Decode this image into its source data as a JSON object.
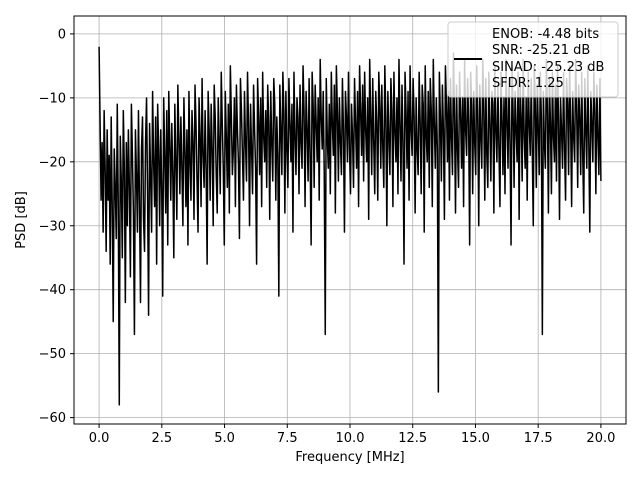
{
  "chart_data": {
    "type": "line",
    "title": "",
    "xlabel": "Frequency [MHz]",
    "ylabel": "PSD [dB]",
    "xlim": [
      -1.0,
      21.0
    ],
    "ylim": [
      -61.0,
      2.8
    ],
    "x_ticks": [
      0.0,
      2.5,
      5.0,
      7.5,
      10.0,
      12.5,
      15.0,
      17.5,
      20.0
    ],
    "x_tick_labels": [
      "0.0",
      "2.5",
      "5.0",
      "7.5",
      "10.0",
      "12.5",
      "15.0",
      "17.5",
      "20.0"
    ],
    "y_ticks": [
      0,
      -10,
      -20,
      -30,
      -40,
      -50,
      -60
    ],
    "y_tick_labels": [
      "0",
      "−10",
      "−20",
      "−30",
      "−40",
      "−50",
      "−60"
    ],
    "grid": true,
    "legend_placement": "top-right",
    "legend_entries": [
      "ENOB: -4.48 bits",
      "SNR: -25.21 dB",
      "SINAD: -25.23 dB",
      "SFDR: 1.25"
    ],
    "line_color": "#000000",
    "series": [
      {
        "x_range": [
          0.0,
          20.0
        ],
        "values": [
          -2,
          -14,
          -26,
          -17,
          -31,
          -12,
          -21,
          -34,
          -15,
          -26,
          -19,
          -36,
          -13,
          -27,
          -45,
          -18,
          -24,
          -32,
          -11,
          -27,
          -58,
          -16,
          -23,
          -35,
          -12,
          -21,
          -42,
          -17,
          -30,
          -15,
          -24,
          -38,
          -11,
          -19,
          -28,
          -47,
          -15,
          -22,
          -31,
          -12,
          -26,
          -42,
          -18,
          -13,
          -29,
          -34,
          -17,
          -10,
          -25,
          -44,
          -14,
          -22,
          -31,
          -9,
          -20,
          -27,
          -13,
          -36,
          -11,
          -18,
          -30,
          -15,
          -24,
          -41,
          -10,
          -19,
          -28,
          -12,
          -33,
          -9,
          -17,
          -26,
          -14,
          -22,
          -35,
          -11,
          -20,
          -29,
          -8,
          -16,
          -25,
          -13,
          -21,
          -30,
          -10,
          -18,
          -27,
          -15,
          -33,
          -9,
          -20,
          -26,
          -12,
          -17,
          -29,
          -8,
          -14,
          -23,
          -31,
          -10,
          -16,
          -27,
          -7,
          -19,
          -24,
          -12,
          -21,
          -36,
          -9,
          -15,
          -26,
          -11,
          -18,
          -30,
          -8,
          -13,
          -22,
          -28,
          -10,
          -17,
          -25,
          -6,
          -14,
          -21,
          -33,
          -9,
          -16,
          -24,
          -11,
          -28,
          -5,
          -13,
          -22,
          -18,
          -10,
          -27,
          -8,
          -15,
          -20,
          -32,
          -7,
          -12,
          -19,
          -26,
          -9,
          -17,
          -23,
          -6,
          -14,
          -30,
          -11,
          -18,
          -25,
          -8,
          -15,
          -21,
          -36,
          -7,
          -13,
          -22,
          -10,
          -27,
          -6,
          -16,
          -20,
          -12,
          -24,
          -8,
          -14,
          -29,
          -9,
          -17,
          -23,
          -7,
          -11,
          -26,
          -13,
          -19,
          -41,
          -8,
          -15,
          -22,
          -6,
          -12,
          -28,
          -9,
          -18,
          -24,
          -7,
          -14,
          -20,
          -11,
          -31,
          -6,
          -16,
          -22,
          -10,
          -13,
          -25,
          -8,
          -17,
          -21,
          -5,
          -12,
          -27,
          -9,
          -15,
          -23,
          -7,
          -19,
          -33,
          -6,
          -11,
          -24,
          -8,
          -14,
          -20,
          -10,
          -26,
          -4,
          -13,
          -18,
          -9,
          -22,
          -47,
          -7,
          -16,
          -21,
          -11,
          -25,
          -6,
          -14,
          -19,
          -8,
          -28,
          -5,
          -12,
          -23,
          -10,
          -17,
          -22,
          -7,
          -15,
          -31,
          -9,
          -13,
          -20,
          -6,
          -18,
          -25,
          -11,
          -16,
          -24,
          -7,
          -14,
          -21,
          -9,
          -27,
          -5,
          -12,
          -19,
          -8,
          -23,
          -6,
          -15,
          -20,
          -10,
          -29,
          -4,
          -13,
          -22,
          -7,
          -17,
          -25,
          -9,
          -14,
          -26,
          -6,
          -11,
          -21,
          -8,
          -18,
          -24,
          -5,
          -13,
          -30,
          -9,
          -16,
          -22,
          -7,
          -12,
          -27,
          -6,
          -15,
          -20,
          -10,
          -25,
          -4,
          -14,
          -23,
          -8,
          -17,
          -36,
          -6,
          -12,
          -21,
          -9,
          -26,
          -5,
          -15,
          -19,
          -7,
          -13,
          -28,
          -10,
          -18,
          -22,
          -6,
          -14,
          -25,
          -8,
          -11,
          -31,
          -5,
          -16,
          -20,
          -9,
          -24,
          -7,
          -12,
          -27,
          -4,
          -14,
          -21,
          -10,
          -18,
          -56,
          -6,
          -13,
          -23,
          -8,
          -15,
          -29,
          -5,
          -11,
          -20,
          -9,
          -26,
          -7,
          -16,
          -22,
          -3,
          -13,
          -28,
          -8,
          -18,
          -24,
          -6,
          -12,
          -21,
          -10,
          -27,
          -4,
          -15,
          -19,
          -7,
          -14,
          -33,
          -6,
          -11,
          -25,
          -9,
          -17,
          -22,
          -5,
          -13,
          -30,
          -8,
          -16,
          -21,
          -4,
          -12,
          -26,
          -7,
          -19,
          -24,
          -6,
          -14,
          -23,
          -9,
          -11,
          -28,
          -5,
          -15,
          -20,
          -8,
          -18,
          -27,
          -6,
          -13,
          -22,
          -10,
          -25,
          -4,
          -14,
          -21,
          -7,
          -17,
          -33,
          -5,
          -12,
          -24,
          -9,
          -15,
          -20,
          -6,
          -29,
          -8,
          -13,
          -23,
          -4,
          -16,
          -21,
          -10,
          -26,
          -6,
          -14,
          -19,
          -7,
          -18,
          -30,
          -5,
          -11,
          -24,
          -8,
          -15,
          -22,
          -6,
          -13,
          -47,
          -9,
          -17,
          -21,
          -4,
          -12,
          -28,
          -7,
          -14,
          -25,
          -6,
          -16,
          -20,
          -8,
          -23,
          -5,
          -13,
          -29,
          -10,
          -15,
          -21,
          -6,
          -18,
          -26,
          -7,
          -11,
          -22,
          -5,
          -14,
          -27,
          -9,
          -16,
          -20,
          -4,
          -12,
          -24,
          -8,
          -13,
          -22,
          -6,
          -19,
          -28,
          -7,
          -15,
          -21,
          -5,
          -17,
          -31,
          -9,
          -14,
          -20,
          -6,
          -12,
          -25,
          -8,
          -16,
          -22,
          -7,
          -23
        ]
      }
    ]
  }
}
